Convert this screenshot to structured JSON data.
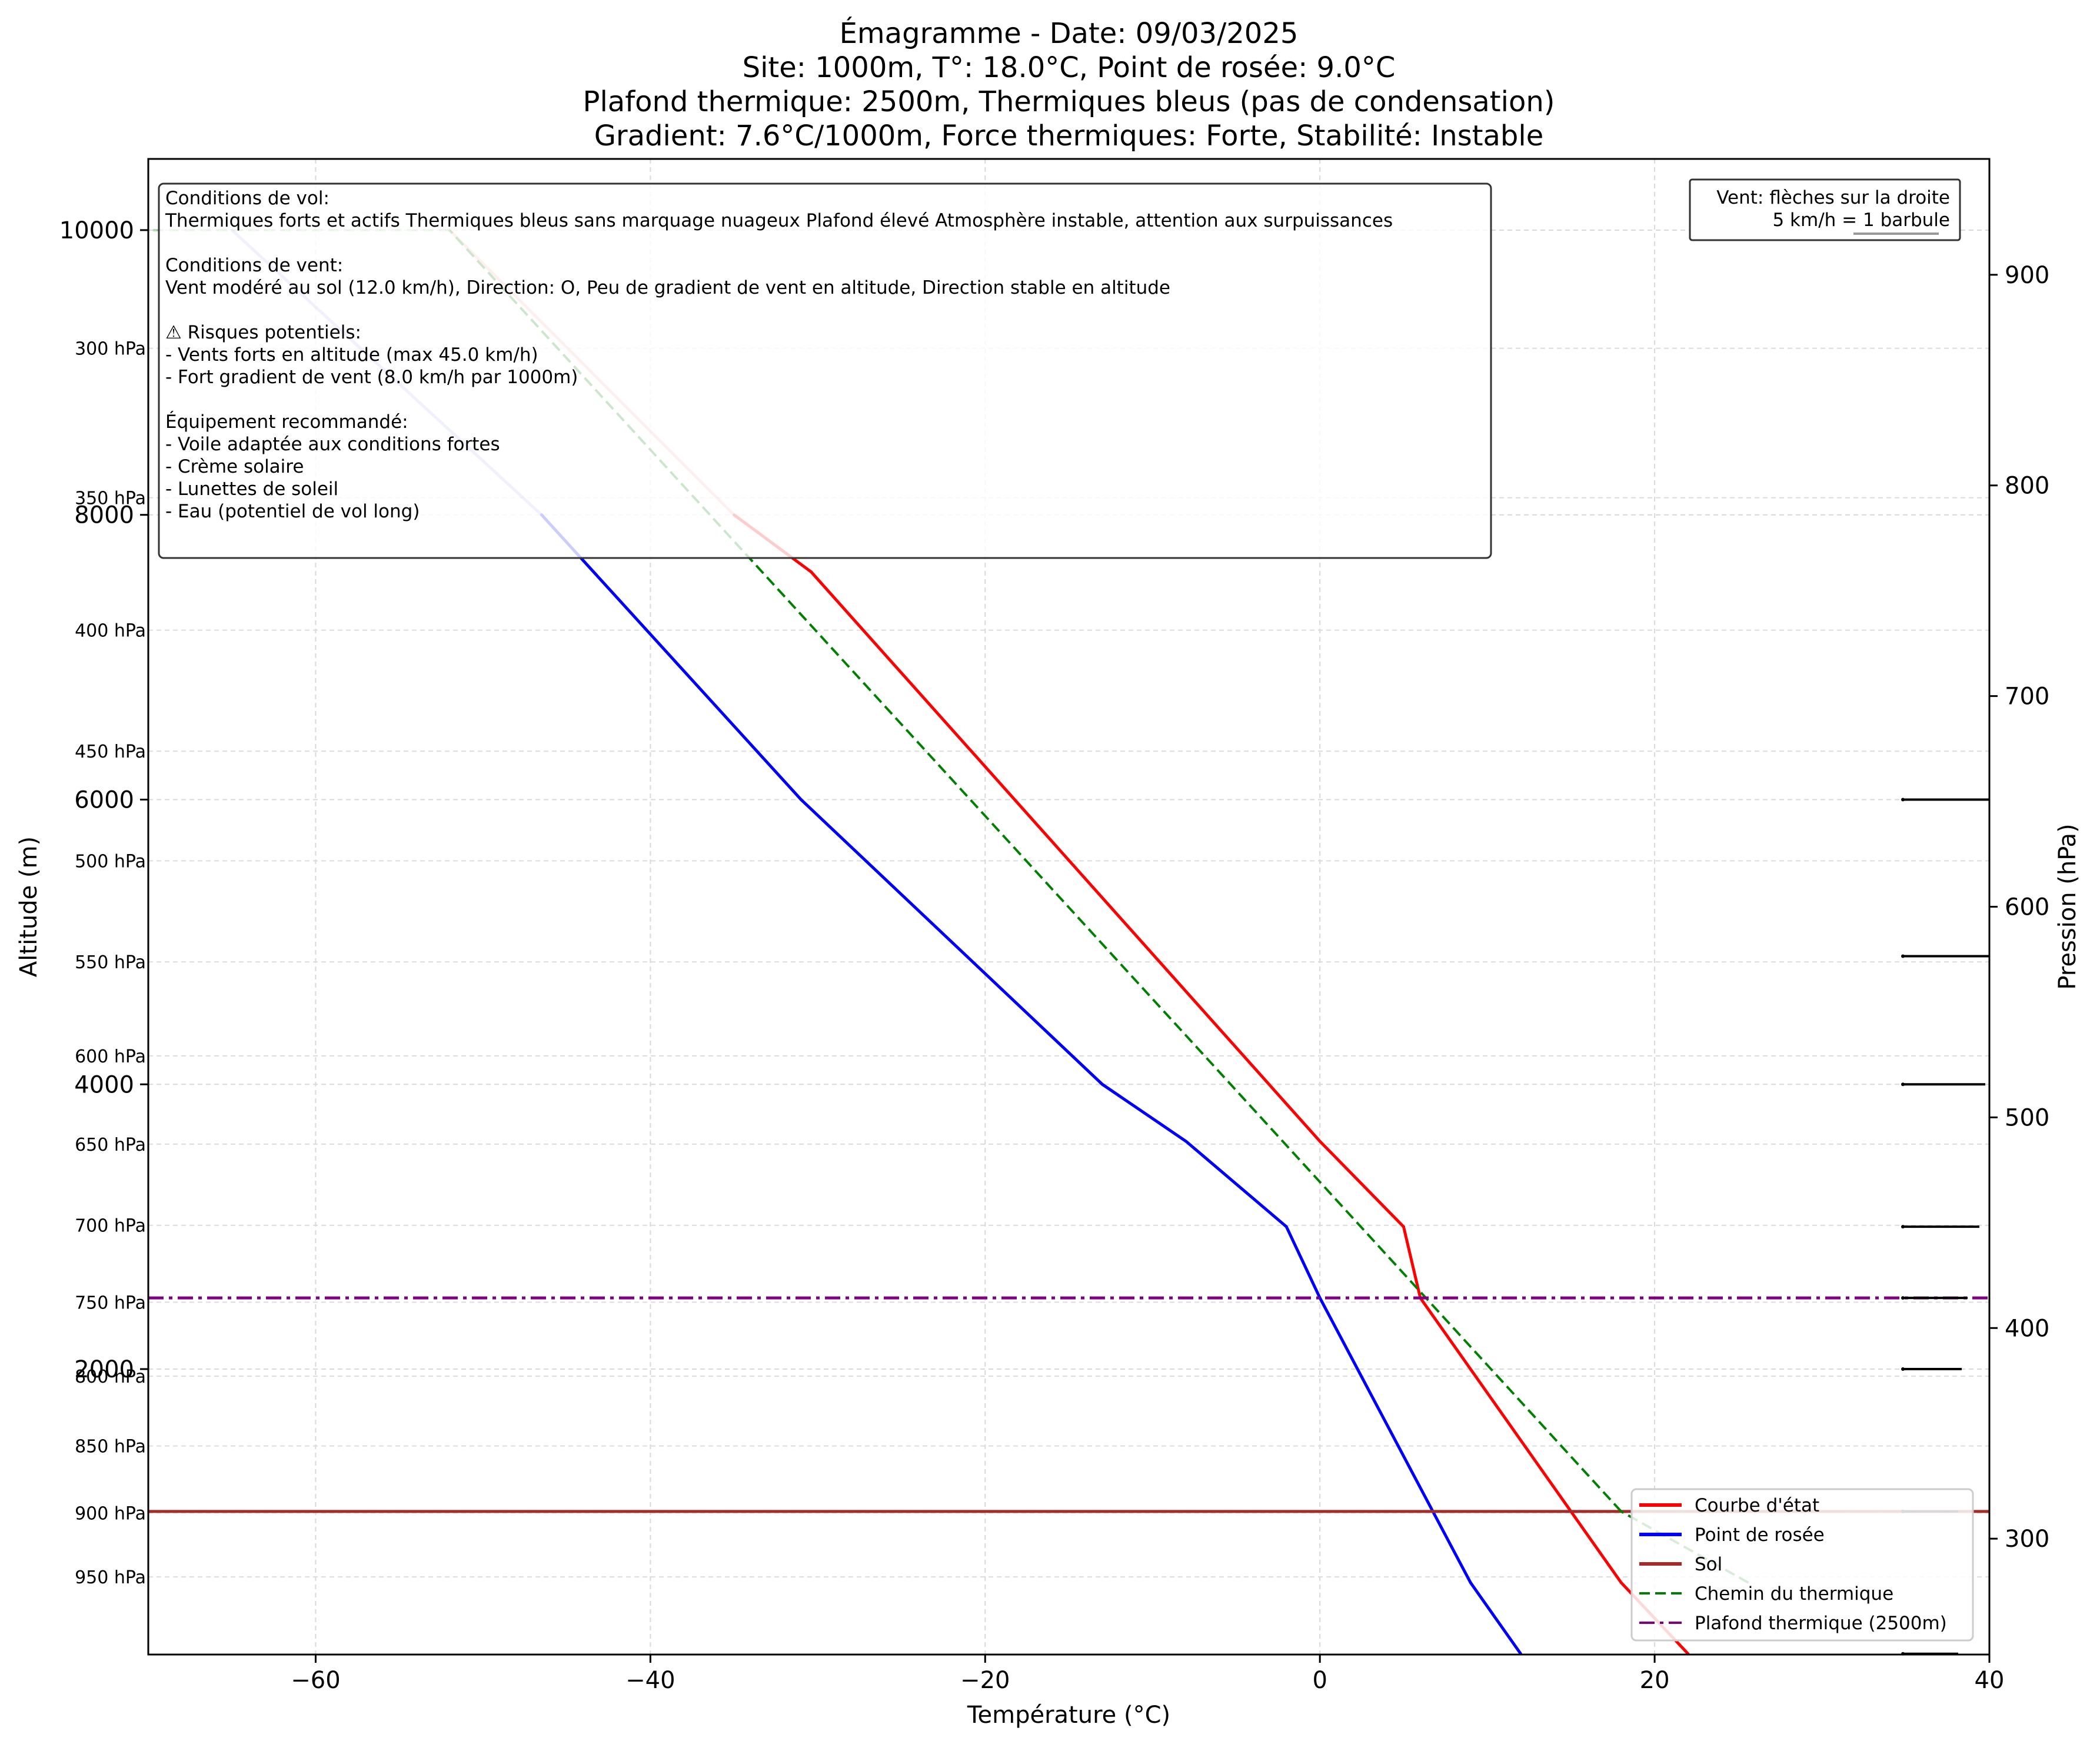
{
  "chart_data": {
    "type": "line",
    "title_lines": [
      "Émagramme - Date: 09/03/2025",
      "Site: 1000m, T°: 18.0°C, Point de rosée: 9.0°C",
      "Plafond thermique: 2500m, Thermiques bleus (pas de condensation)",
      "Gradient: 7.6°C/1000m, Force thermiques: Forte, Stabilité: Instable"
    ],
    "xlabel": "Température (°C)",
    "ylabel": "Altitude (m)",
    "y2label": "Pression (hPa)",
    "xlim": [
      -70,
      40
    ],
    "ylim": [
      -5,
      10500
    ],
    "grid": true,
    "x_ticks": [
      -60,
      -40,
      -20,
      0,
      20,
      40
    ],
    "y_ticks": [
      2000,
      4000,
      6000,
      8000,
      10000
    ],
    "y2_ticks": [
      300,
      400,
      500,
      600,
      700,
      800,
      900
    ],
    "pressure_labels": [
      {
        "text": "300 hPa",
        "alt": 9170
      },
      {
        "text": "350 hPa",
        "alt": 8120
      },
      {
        "text": "400 hPa",
        "alt": 7190
      },
      {
        "text": "450 hPa",
        "alt": 6340
      },
      {
        "text": "500 hPa",
        "alt": 5570
      },
      {
        "text": "550 hPa",
        "alt": 4860
      },
      {
        "text": "600 hPa",
        "alt": 4200
      },
      {
        "text": "650 hPa",
        "alt": 3580
      },
      {
        "text": "700 hPa",
        "alt": 3010
      },
      {
        "text": "750 hPa",
        "alt": 2470
      },
      {
        "text": "800 hPa",
        "alt": 1950
      },
      {
        "text": "850 hPa",
        "alt": 1460
      },
      {
        "text": "900 hPa",
        "alt": 990
      },
      {
        "text": "950 hPa",
        "alt": 540
      }
    ],
    "series": [
      {
        "name": "Courbe d'état",
        "color": "#ff0000",
        "style": "solid",
        "points": [
          [
            22.0,
            0
          ],
          [
            18.0,
            500
          ],
          [
            6.0,
            2500
          ],
          [
            5.0,
            3000
          ],
          [
            0.0,
            3600
          ],
          [
            -15.2,
            5600
          ],
          [
            -30.4,
            7600
          ],
          [
            -35,
            8000
          ],
          [
            -52,
            10000
          ]
        ],
        "faded_above": 8000
      },
      {
        "name": "Point de rosée",
        "color": "#0000ff",
        "style": "solid",
        "points": [
          [
            12.0,
            0
          ],
          [
            9.0,
            500
          ],
          [
            0.0,
            2500
          ],
          [
            -2.0,
            3000
          ],
          [
            -8.0,
            3600
          ],
          [
            -13.0,
            4000
          ],
          [
            -31.0,
            6000
          ],
          [
            -46.5,
            8000
          ],
          [
            -65.0,
            10000
          ]
        ],
        "faded_above": 8000
      },
      {
        "name": "Sol",
        "color": "#a52a2a",
        "style": "hline",
        "y": 1000
      },
      {
        "name": "Chemin du thermique",
        "color": "#008000",
        "style": "dashed",
        "points": [
          [
            25.6,
            500
          ],
          [
            18.0,
            1000
          ],
          [
            -52.0,
            10000
          ],
          [
            -70.0,
            10000
          ]
        ],
        "faded_above": 8000
      },
      {
        "name": "Plafond thermique (2500m)",
        "color": "#800080",
        "style": "dashdot",
        "y": 2500
      }
    ],
    "wind_barbs": [
      {
        "alt": 6000,
        "speed_kmh": 45
      },
      {
        "alt": 4900,
        "speed_kmh": 40
      },
      {
        "alt": 4000,
        "speed_kmh": 35
      },
      {
        "alt": 3000,
        "speed_kmh": 30
      },
      {
        "alt": 2500,
        "speed_kmh": 20
      },
      {
        "alt": 2000,
        "speed_kmh": 15
      },
      {
        "alt": 1000,
        "speed_kmh": 12
      },
      {
        "alt": 0,
        "speed_kmh": 12
      }
    ],
    "info_box_lines": [
      "Conditions de vol:",
      "Thermiques forts et actifs Thermiques bleus sans marquage nuageux Plafond élevé Atmosphère instable, attention aux surpuissances",
      "",
      "Conditions de vent:",
      "Vent modéré au sol (12.0 km/h), Direction: O, Peu de gradient de vent en altitude, Direction stable en altitude",
      "",
      "⚠ Risques potentiels:",
      "- Vents forts en altitude (max 45.0 km/h)",
      "- Fort gradient de vent (8.0 km/h par 1000m)",
      "",
      "Équipement recommandé:",
      "- Voile adaptée aux conditions fortes",
      "- Crème solaire",
      "- Lunettes de soleil",
      "- Eau (potentiel de vol long)"
    ],
    "wind_note_lines": [
      "Vent: flèches sur la droite",
      "5 km/h = 1 barbule"
    ],
    "legend_position": "lower-right"
  }
}
